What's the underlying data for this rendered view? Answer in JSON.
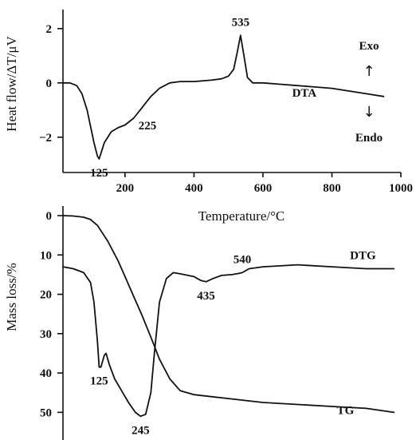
{
  "chart_data": [
    {
      "type": "line",
      "name": "DTA panel",
      "xlim": [
        20,
        1000
      ],
      "ylim": [
        -3.3,
        2.7
      ],
      "x_ticks": [
        200,
        400,
        600,
        800,
        1000
      ],
      "y_ticks": [
        2,
        0,
        -2
      ],
      "y_tick_labels": [
        "2",
        "0",
        "−2"
      ],
      "xlabel": "Temperature/°C",
      "ylabel": "Heat flow/ΔT/μV",
      "series": [
        {
          "name": "DTA",
          "x": [
            20,
            40,
            60,
            75,
            90,
            100,
            110,
            120,
            125,
            130,
            140,
            160,
            180,
            200,
            225,
            250,
            275,
            300,
            330,
            360,
            400,
            450,
            480,
            500,
            515,
            525,
            535,
            545,
            555,
            570,
            600,
            650,
            700,
            750,
            800,
            850,
            900,
            950
          ],
          "y": [
            0.0,
            0.0,
            -0.1,
            -0.4,
            -1.0,
            -1.6,
            -2.2,
            -2.7,
            -2.8,
            -2.6,
            -2.2,
            -1.8,
            -1.65,
            -1.55,
            -1.3,
            -0.9,
            -0.5,
            -0.2,
            0.0,
            0.05,
            0.05,
            0.1,
            0.15,
            0.25,
            0.5,
            1.1,
            1.75,
            1.0,
            0.2,
            0.0,
            0.0,
            -0.05,
            -0.1,
            -0.15,
            -0.2,
            -0.3,
            -0.4,
            -0.5
          ]
        }
      ],
      "annotations": [
        {
          "text": "535",
          "x": 535,
          "y": 1.75
        },
        {
          "text": "225",
          "x": 225,
          "y": -1.3
        },
        {
          "text": "125",
          "x": 125,
          "y": -2.8
        },
        {
          "text": "DTA",
          "x": 720,
          "y": -0.15
        }
      ],
      "exo_label": "Exo",
      "endo_label": "Endo",
      "up_arrow": "↑",
      "down_arrow": "↓"
    },
    {
      "type": "line",
      "name": "TG/DTG panel",
      "xlim": [
        20,
        1000
      ],
      "ylim": [
        0,
        55
      ],
      "y_inverted": true,
      "y_ticks": [
        0,
        10,
        20,
        30,
        40,
        50
      ],
      "ylabel": "Mass loss/%",
      "series": [
        {
          "name": "TG",
          "x": [
            20,
            50,
            80,
            100,
            120,
            150,
            180,
            200,
            220,
            250,
            280,
            300,
            330,
            360,
            400,
            450,
            500,
            600,
            700,
            800,
            900,
            980
          ],
          "y": [
            0.0,
            0.1,
            0.4,
            1.0,
            2.5,
            6.5,
            11.5,
            15.5,
            19.5,
            25.5,
            32.0,
            36.5,
            41.5,
            44.5,
            45.5,
            46.0,
            46.5,
            47.5,
            48.0,
            48.5,
            49.0,
            50.0
          ]
        },
        {
          "name": "DTG",
          "x": [
            20,
            50,
            80,
            100,
            110,
            120,
            125,
            130,
            140,
            145,
            155,
            170,
            190,
            210,
            230,
            245,
            260,
            275,
            285,
            300,
            320,
            340,
            360,
            400,
            420,
            435,
            455,
            480,
            510,
            530,
            540,
            560,
            600,
            700,
            800,
            900,
            980
          ],
          "y": [
            13.0,
            13.5,
            14.5,
            17.0,
            22.0,
            32.0,
            38.5,
            38.5,
            35.5,
            35.0,
            38.0,
            41.5,
            44.5,
            47.5,
            50.0,
            51.0,
            50.5,
            45.0,
            35.0,
            22.0,
            16.0,
            14.5,
            14.8,
            15.5,
            16.5,
            16.8,
            16.0,
            15.2,
            15.0,
            14.7,
            14.5,
            13.5,
            13.0,
            12.5,
            13.0,
            13.5,
            13.5
          ]
        }
      ],
      "annotations": [
        {
          "text": "435",
          "x": 435,
          "y": 16.8
        },
        {
          "text": "540",
          "x": 540,
          "y": 14.5
        },
        {
          "text": "DTG",
          "x": 890,
          "y": 13.5
        },
        {
          "text": "125",
          "x": 125,
          "y": 38.5
        },
        {
          "text": "TG",
          "x": 890,
          "y": 49.0
        },
        {
          "text": "245",
          "x": 245,
          "y": 51.0
        }
      ]
    }
  ]
}
